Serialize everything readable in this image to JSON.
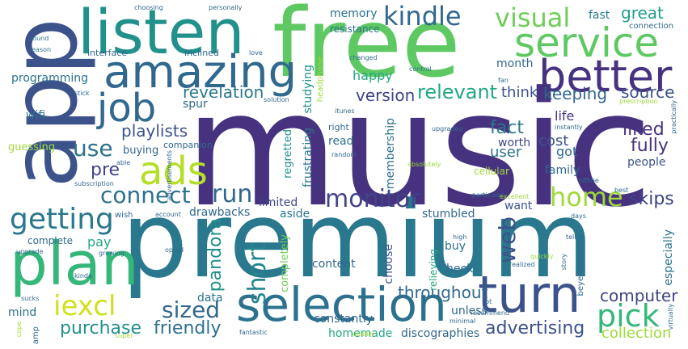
{
  "words": [
    {
      "text": "music",
      "color": "#46327e"
    },
    {
      "text": "premium",
      "color": "#2a788e"
    },
    {
      "text": "free",
      "color": "#5ec962"
    },
    {
      "text": "app",
      "color": "#3b528b"
    },
    {
      "text": "listen",
      "color": "#21918c"
    },
    {
      "text": "amazing",
      "color": "#31688e"
    },
    {
      "text": "plan",
      "color": "#35b779"
    },
    {
      "text": "selection",
      "color": "#2c728e"
    },
    {
      "text": "service",
      "color": "#5ec962"
    },
    {
      "text": "better",
      "color": "#46327e"
    },
    {
      "text": "turn",
      "color": "#3b528b"
    },
    {
      "text": "job",
      "color": "#31688e"
    },
    {
      "text": "ads",
      "color": "#b5de2b"
    },
    {
      "text": "getting",
      "color": "#2a788e"
    },
    {
      "text": "kindle",
      "color": "#31688e"
    },
    {
      "text": "visual",
      "color": "#6ece58"
    },
    {
      "text": "iexcl",
      "color": "#d0e11c"
    },
    {
      "text": "pick",
      "color": "#35b779"
    },
    {
      "text": "home",
      "color": "#a0da39"
    },
    {
      "text": "connect",
      "color": "#2c728e"
    },
    {
      "text": "run",
      "color": "#31688e"
    },
    {
      "text": "monitor",
      "color": "#414487"
    },
    {
      "text": "use",
      "color": "#2c728e"
    },
    {
      "text": "sized",
      "color": "#31688e"
    },
    {
      "text": "short",
      "color": "#25858e"
    },
    {
      "text": "web",
      "color": "#3b528b"
    },
    {
      "text": "purchase",
      "color": "#21918c"
    },
    {
      "text": "friendly",
      "color": "#2c728e"
    },
    {
      "text": "advertising",
      "color": "#3b528b"
    },
    {
      "text": "fully",
      "color": "#46327e"
    },
    {
      "text": "great",
      "color": "#1f9e89"
    },
    {
      "text": "relevant",
      "color": "#22a884"
    },
    {
      "text": "version",
      "color": "#404387"
    },
    {
      "text": "keeping",
      "color": "#31688e"
    },
    {
      "text": "source",
      "color": "#3b528b"
    },
    {
      "text": "revelation",
      "color": "#2a788e"
    },
    {
      "text": "playlists",
      "color": "#3b528b"
    },
    {
      "text": "fact",
      "color": "#2a788e"
    },
    {
      "text": "liked",
      "color": "#46327e"
    },
    {
      "text": "throughout",
      "color": "#31688e"
    },
    {
      "text": "computer",
      "color": "#414487"
    },
    {
      "text": "collection",
      "color": "#a0da39"
    },
    {
      "text": "skips",
      "color": "#404387"
    },
    {
      "text": "pandora",
      "color": "#21918c"
    },
    {
      "text": "pre",
      "color": "#414487"
    },
    {
      "text": "programming",
      "color": "#2c728e"
    },
    {
      "text": "memory",
      "color": "#2c728e"
    },
    {
      "text": "fast",
      "color": "#2a788e"
    },
    {
      "text": "studying",
      "color": "#21918c"
    },
    {
      "text": "happy",
      "color": "#22a884"
    },
    {
      "text": "think",
      "color": "#3b528b"
    },
    {
      "text": "month",
      "color": "#31688e"
    },
    {
      "text": "life",
      "color": "#46327e"
    },
    {
      "text": "cost",
      "color": "#3b528b"
    },
    {
      "text": "got",
      "color": "#31688e"
    },
    {
      "text": "user",
      "color": "#2c728e"
    },
    {
      "text": "worth",
      "color": "#414487"
    },
    {
      "text": "family",
      "color": "#31688e"
    },
    {
      "text": "people",
      "color": "#3b528b"
    },
    {
      "text": "membership",
      "color": "#2c728e"
    },
    {
      "text": "frustrating",
      "color": "#2a788e"
    },
    {
      "text": "regretted",
      "color": "#21918c"
    },
    {
      "text": "read",
      "color": "#2c728e"
    },
    {
      "text": "cellular",
      "color": "#a0da39"
    },
    {
      "text": "spur",
      "color": "#31688e"
    },
    {
      "text": "limited",
      "color": "#414487"
    },
    {
      "text": "aside",
      "color": "#2c728e"
    },
    {
      "text": "stumbled",
      "color": "#31688e"
    },
    {
      "text": "want",
      "color": "#3b528b"
    },
    {
      "text": "drawbacks",
      "color": "#31688e"
    },
    {
      "text": "pay",
      "color": "#22a884"
    },
    {
      "text": "content",
      "color": "#31688e"
    },
    {
      "text": "choose",
      "color": "#3b528b"
    },
    {
      "text": "heck",
      "color": "#31688e"
    },
    {
      "text": "completely",
      "color": "#6ece58"
    },
    {
      "text": "relieving",
      "color": "#22a884"
    },
    {
      "text": "constantly",
      "color": "#31688e"
    },
    {
      "text": "data",
      "color": "#2c728e"
    },
    {
      "text": "mind",
      "color": "#2c728e"
    },
    {
      "text": "complete",
      "color": "#31688e"
    },
    {
      "text": "homemade",
      "color": "#22a884"
    },
    {
      "text": "discographies",
      "color": "#31688e"
    },
    {
      "text": "especially",
      "color": "#2c728e"
    },
    {
      "text": "unless",
      "color": "#31688e"
    },
    {
      "text": "buy",
      "color": "#2c728e"
    },
    {
      "text": "guessing",
      "color": "#a0da39"
    },
    {
      "text": "buying",
      "color": "#31688e"
    },
    {
      "text": "companion",
      "color": "#31688e"
    },
    {
      "text": "wifi",
      "color": "#2c728e"
    },
    {
      "text": "interface",
      "color": "#31688e"
    },
    {
      "text": "inclined",
      "color": "#31688e"
    },
    {
      "text": "resistance",
      "color": "#2c728e"
    },
    {
      "text": "connection",
      "color": "#31688e"
    },
    {
      "text": "choosing",
      "color": "#31688e"
    },
    {
      "text": "personally",
      "color": "#31688e"
    },
    {
      "text": "sound",
      "color": "#2c728e"
    },
    {
      "text": "reason",
      "color": "#2c728e"
    },
    {
      "text": "love",
      "color": "#31688e"
    },
    {
      "text": "changed",
      "color": "#31688e"
    },
    {
      "text": "control",
      "color": "#2c728e"
    },
    {
      "text": "headphone",
      "color": "#a0da39"
    },
    {
      "text": "solution",
      "color": "#31688e"
    },
    {
      "text": "itunes",
      "color": "#31688e"
    },
    {
      "text": "fan",
      "color": "#31688e"
    },
    {
      "text": "prescription",
      "color": "#a0da39"
    },
    {
      "text": "practically",
      "color": "#31688e"
    },
    {
      "text": "stick",
      "color": "#31688e"
    },
    {
      "text": "upgraded",
      "color": "#31688e"
    },
    {
      "text": "instantly",
      "color": "#31688e"
    },
    {
      "text": "right",
      "color": "#31688e"
    },
    {
      "text": "random",
      "color": "#31688e"
    },
    {
      "text": "absolutely",
      "color": "#a0da39"
    },
    {
      "text": "advertisements",
      "color": "#31688e"
    },
    {
      "text": "able",
      "color": "#31688e"
    },
    {
      "text": "subscription",
      "color": "#31688e"
    },
    {
      "text": "account",
      "color": "#31688e"
    },
    {
      "text": "wish",
      "color": "#31688e"
    },
    {
      "text": "growing",
      "color": "#31688e"
    },
    {
      "text": "upgrade",
      "color": "#31688e"
    },
    {
      "text": "opted",
      "color": "#31688e"
    },
    {
      "text": "particular",
      "color": "#31688e"
    },
    {
      "text": "excellent",
      "color": "#a0da39"
    },
    {
      "text": "days",
      "color": "#31688e"
    },
    {
      "text": "offline",
      "color": "#31688e"
    },
    {
      "text": "best",
      "color": "#31688e"
    },
    {
      "text": "tell",
      "color": "#31688e"
    },
    {
      "text": "high",
      "color": "#31688e"
    },
    {
      "text": "quickly",
      "color": "#a0da39"
    },
    {
      "text": "realized",
      "color": "#31688e"
    },
    {
      "text": "beyerdynamics",
      "color": "#31688e"
    },
    {
      "text": "story",
      "color": "#31688e"
    },
    {
      "text": "recommend",
      "color": "#31688e"
    },
    {
      "text": "lot",
      "color": "#31688e"
    },
    {
      "text": "minimal",
      "color": "#31688e"
    },
    {
      "text": "fantastic",
      "color": "#31688e"
    },
    {
      "text": "quality",
      "color": "#a0da39"
    },
    {
      "text": "sucks",
      "color": "#31688e"
    },
    {
      "text": "kinda",
      "color": "#31688e"
    },
    {
      "text": "amp",
      "color": "#31688e"
    },
    {
      "text": "cope",
      "color": "#a0da39"
    },
    {
      "text": "super",
      "color": "#a0da39"
    },
    {
      "text": "virtually",
      "color": "#31688e"
    }
  ]
}
